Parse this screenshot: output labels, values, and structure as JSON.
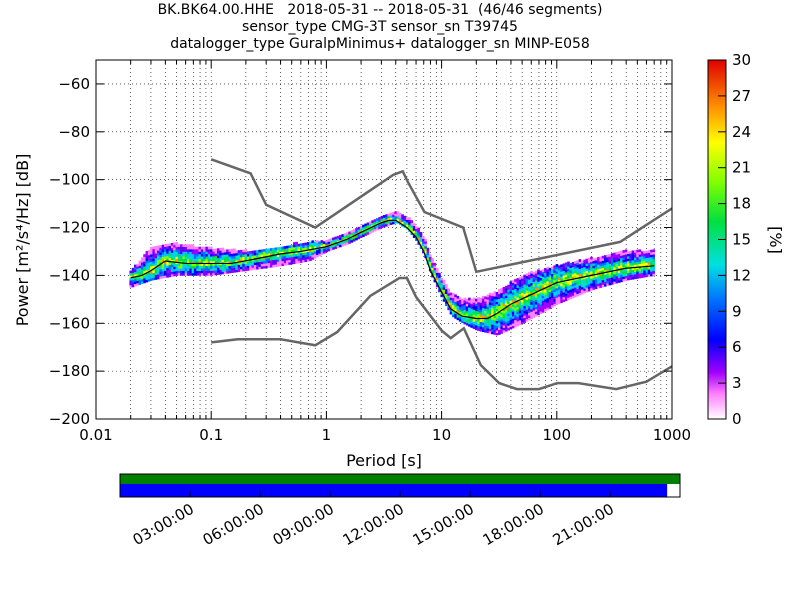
{
  "chart_data": {
    "type": "heatmap",
    "title_lines": [
      "BK.BK64.00.HHE   2018-05-31 -- 2018-05-31  (46/46 segments)",
      "sensor_type CMG-3T sensor_sn T39745",
      "datalogger_type GuralpMinimus+ datalogger_sn MINP-E058"
    ],
    "xlabel": "Period [s]",
    "ylabel": "Power [m²/s⁴/Hz] [dB]",
    "xscale": "log",
    "xlim": [
      0.01,
      1000
    ],
    "ylim": [
      -200,
      -50
    ],
    "x_ticks": [
      0.01,
      0.1,
      1,
      10,
      100,
      1000
    ],
    "x_ticklabels": [
      "0.01",
      "0.1",
      "1",
      "10",
      "100",
      "1000"
    ],
    "y_ticks": [
      -200,
      -180,
      -160,
      -140,
      -120,
      -100,
      -80,
      -60
    ],
    "y_ticklabels": [
      "−200",
      "−180",
      "−160",
      "−140",
      "−120",
      "−100",
      "−80",
      "−60"
    ],
    "grid": true,
    "colorbar": {
      "label": "[%]",
      "range": [
        0,
        30
      ],
      "ticks": [
        0,
        3,
        6,
        9,
        12,
        15,
        18,
        21,
        24,
        27,
        30
      ],
      "tick_labels": [
        "0",
        "3",
        "6",
        "9",
        "12",
        "15",
        "18",
        "21",
        "24",
        "27",
        "30"
      ]
    },
    "noise_models": {
      "high": {
        "x": [
          0.1,
          0.22,
          0.3,
          0.8,
          3.8,
          4.6,
          5.1,
          7.1,
          15.4,
          20,
          354.8,
          1000
        ],
        "y": [
          -91.5,
          -97.4,
          -110.5,
          -120,
          -98,
          -96.5,
          -101,
          -113.5,
          -120,
          -138.5,
          -126,
          -112
        ]
      },
      "low": {
        "x": [
          0.1,
          0.17,
          0.4,
          0.8,
          1.24,
          2.4,
          4.3,
          5,
          6,
          10,
          12,
          15.6,
          21.9,
          31.6,
          45,
          70,
          101,
          154,
          328,
          600,
          1000
        ],
        "y": [
          -168,
          -166.7,
          -166.7,
          -169.2,
          -163.7,
          -148.6,
          -141.1,
          -141.1,
          -149,
          -163,
          -166.2,
          -162.1,
          -177.5,
          -185,
          -187.5,
          -187.5,
          -185,
          -185,
          -187.5,
          -184.4,
          -178
        ]
      }
    },
    "mode_curve": {
      "x": [
        0.02,
        0.025,
        0.03,
        0.04,
        0.06,
        0.1,
        0.15,
        0.25,
        0.4,
        0.6,
        1,
        1.5,
        2,
        3,
        3.5,
        4,
        5,
        6,
        7,
        8,
        10,
        12,
        15,
        20,
        25,
        30,
        40,
        60,
        100,
        200,
        400,
        700
      ],
      "y": [
        -141,
        -140,
        -138,
        -134,
        -135,
        -135,
        -135,
        -133,
        -131,
        -130,
        -128,
        -125,
        -122,
        -118,
        -117,
        -117,
        -120,
        -124,
        -130,
        -138,
        -147,
        -154,
        -157,
        -158,
        -158,
        -156,
        -152,
        -148,
        -143,
        -140,
        -137,
        -136
      ]
    },
    "spread": {
      "x": [
        0.02,
        0.03,
        0.05,
        0.1,
        0.2,
        0.4,
        0.7,
        1,
        1.5,
        2,
        3,
        4,
        5,
        6,
        7,
        8,
        10,
        12,
        15,
        20,
        30,
        50,
        100,
        200,
        400,
        700
      ],
      "y_low": [
        -145,
        -142,
        -140,
        -140,
        -138,
        -136,
        -134,
        -130,
        -127,
        -124,
        -120,
        -118,
        -121,
        -126,
        -132,
        -140,
        -150,
        -157,
        -160,
        -163,
        -165,
        -160,
        -152,
        -146,
        -142,
        -140
      ],
      "y_high": [
        -138,
        -128,
        -127,
        -129,
        -130,
        -128,
        -126,
        -126,
        -122,
        -119,
        -115,
        -114,
        -116,
        -120,
        -125,
        -133,
        -142,
        -148,
        -150,
        -150,
        -147,
        -140,
        -136,
        -133,
        -130,
        -130
      ]
    }
  },
  "coverage": {
    "time_ticks": [
      "03:00:00",
      "06:00:00",
      "09:00:00",
      "12:00:00",
      "15:00:00",
      "18:00:00",
      "21:00:00"
    ],
    "colors": {
      "available": "#008000",
      "used": "#0000ff"
    },
    "used_fraction": 0.977
  }
}
